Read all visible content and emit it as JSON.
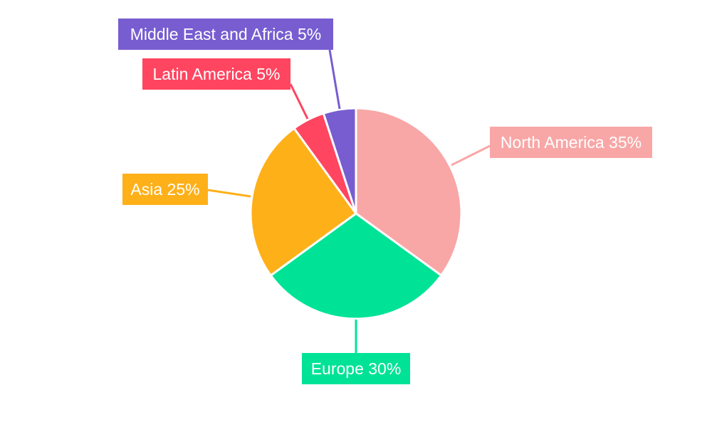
{
  "chart_data": {
    "type": "pie",
    "title": "",
    "categories": [
      "North America",
      "Europe",
      "Asia",
      "Latin America",
      "Middle East and Africa"
    ],
    "values": [
      35,
      30,
      25,
      5,
      5
    ],
    "labels": [
      "North America 35%",
      "Europe 30%",
      "Asia 25%",
      "Latin America 5%",
      "Middle East and Africa 5%"
    ],
    "colors": [
      "#F9A6A6",
      "#00E396",
      "#FEB019",
      "#FF4560",
      "#775DD0"
    ],
    "start_angle": "top",
    "direction": "clockwise",
    "legend": "none"
  }
}
